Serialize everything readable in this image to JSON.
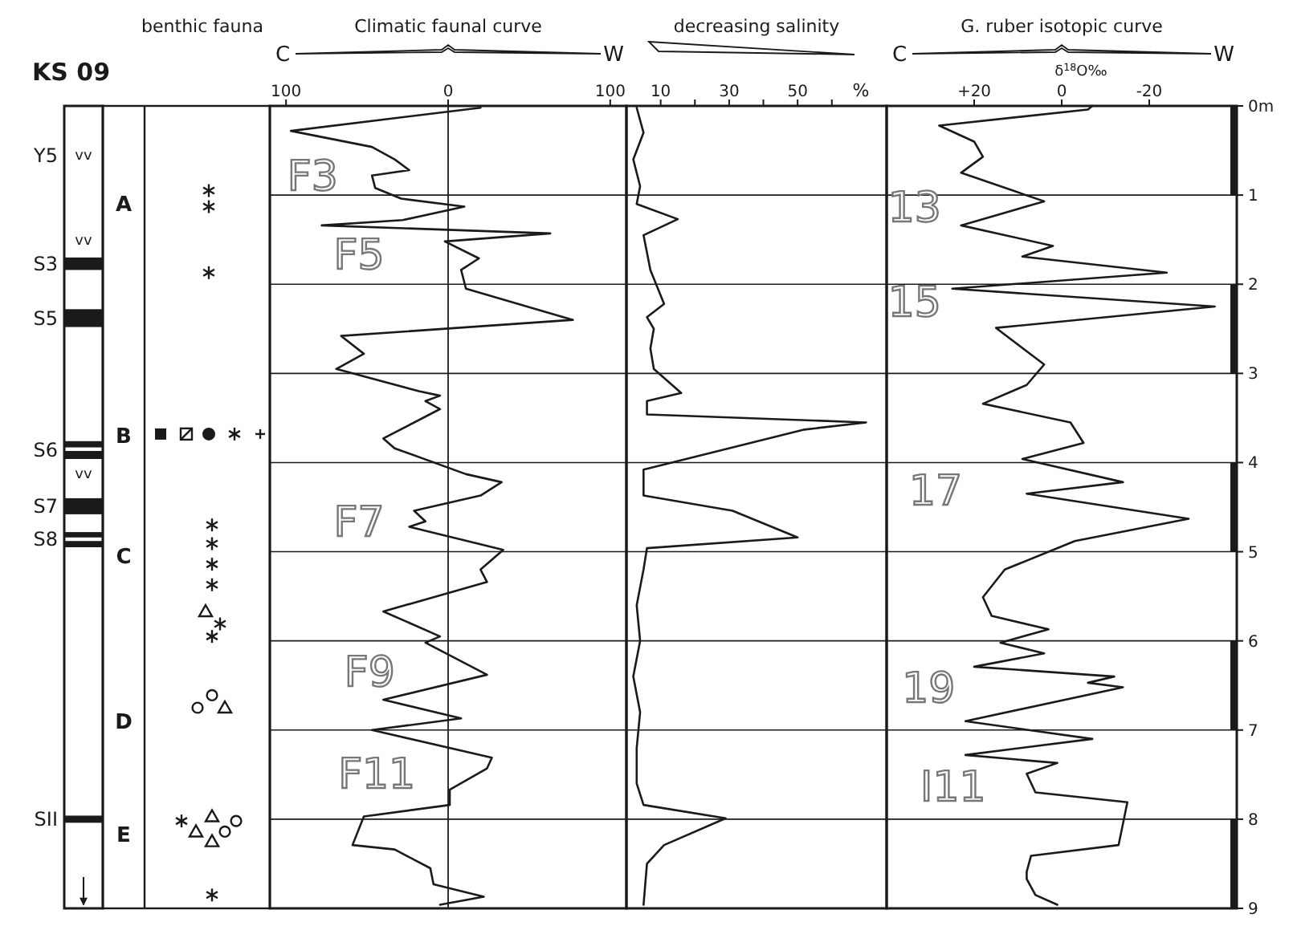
{
  "chart_data": [
    {
      "type": "other",
      "title": "KS 09",
      "annotations": [
        "Y5",
        "S3",
        "S5",
        "S6",
        "S7",
        "S8",
        "SII",
        "vv",
        "vv",
        "vv"
      ]
    },
    {
      "type": "other",
      "title": "benthic fauna",
      "annotations": [
        "A",
        "B",
        "C",
        "D",
        "E"
      ]
    },
    {
      "type": "line",
      "title": "Climatic faunal curve",
      "orientation": "horizontal",
      "xlim": [
        -110,
        110
      ],
      "xticks": [
        {
          "value": -100,
          "label": "100"
        },
        0,
        100
      ],
      "ylim": [
        9,
        0
      ],
      "yticks": [
        0,
        1,
        2,
        3,
        4,
        5,
        6,
        7,
        8,
        9
      ],
      "grid": "y",
      "tick_labels": "x",
      "ref_lines": [
        {
          "axis": "x",
          "value": 0
        }
      ],
      "annotations": [
        "C",
        "W",
        "F3",
        "F5",
        "F7",
        "F9",
        "F11"
      ],
      "series": [
        {
          "color": "#1a1a1a",
          "x": [
            0.02,
            0.28,
            0.46,
            0.6,
            0.72,
            0.78,
            0.92,
            1.04,
            1.13,
            1.28,
            1.34,
            1.43,
            1.52,
            1.71,
            1.84,
            2.05,
            2.4,
            2.58,
            2.78,
            2.95,
            3.2,
            3.25,
            3.31,
            3.4,
            3.73,
            3.84,
            4.13,
            4.22,
            4.37,
            4.54,
            4.66,
            4.72,
            4.98,
            5.2,
            5.34,
            5.67,
            5.95,
            6.02,
            6.38,
            6.66,
            6.87,
            7.0,
            7.31,
            7.43,
            7.67,
            7.84,
            7.97,
            8.29,
            8.34,
            8.55,
            8.73,
            8.87,
            8.96
          ],
          "values": [
            20,
            -97,
            -47,
            -33,
            -24,
            -47,
            -45,
            -29,
            10,
            -28,
            -78,
            63,
            -2,
            19,
            8,
            11,
            77,
            -66,
            -52,
            -69,
            -18,
            -5,
            -14,
            -5,
            -40,
            -33,
            11,
            33,
            20,
            -21,
            -14,
            -24,
            34,
            20,
            24,
            -40,
            -5,
            -14,
            24,
            -40,
            8,
            -47,
            27,
            24,
            1,
            1,
            -52,
            -59,
            -33,
            -11,
            -9,
            22,
            -5
          ]
        }
      ]
    },
    {
      "type": "line",
      "title": "decreasing salinity",
      "xlabel": "%",
      "orientation": "horizontal",
      "xlim": [
        0,
        76
      ],
      "xticks": [
        10,
        {
          "value": 20,
          "label": null
        },
        30,
        {
          "value": 40,
          "label": null
        },
        50,
        {
          "value": 60,
          "label": null
        }
      ],
      "ylim": [
        9,
        0
      ],
      "yticks": [
        0,
        1,
        2,
        3,
        4,
        5,
        6,
        7,
        8,
        9
      ],
      "grid": "y",
      "tick_labels": "x",
      "series": [
        {
          "color": "#1a1a1a",
          "x": [
            0.02,
            0.3,
            0.6,
            0.9,
            1.1,
            1.27,
            1.45,
            1.84,
            2.22,
            2.37,
            2.5,
            2.72,
            2.95,
            3.22,
            3.31,
            3.46,
            3.55,
            3.63,
            4.08,
            4.37,
            4.54,
            4.84,
            4.96,
            5.2,
            5.6,
            6.0,
            6.4,
            6.8,
            7.2,
            7.6,
            7.84,
            7.99,
            8.29,
            8.5,
            8.96
          ],
          "values": [
            3,
            5,
            2,
            4,
            3,
            15,
            5,
            7,
            11,
            6,
            8,
            7,
            8,
            16,
            6,
            6,
            70,
            52,
            5,
            5,
            31,
            50,
            6,
            5,
            3,
            4,
            2,
            4,
            3,
            3,
            5,
            29,
            11,
            6,
            5
          ]
        }
      ]
    },
    {
      "type": "line",
      "title": "G. ruber isotopic curve",
      "xlabel": "δ$^{18}$O‰",
      "orientation": "horizontal",
      "xlim": [
        40,
        -40
      ],
      "xticks": [
        {
          "value": 20,
          "label": "+20"
        },
        0,
        -20
      ],
      "ylim": [
        9,
        0
      ],
      "yticks": [
        {
          "value": 0,
          "label": "0m"
        },
        1,
        2,
        3,
        4,
        5,
        6,
        7,
        8,
        9
      ],
      "grid": "y",
      "annotations": [
        "C",
        "W",
        "13",
        "15",
        "17",
        "19",
        "I11"
      ],
      "series": [
        {
          "color": "#1a1a1a",
          "x": [
            0,
            0.04,
            0.22,
            0.4,
            0.57,
            0.75,
            1.07,
            1.34,
            1.57,
            1.69,
            1.87,
            2.05,
            2.25,
            2.49,
            2.9,
            3.13,
            3.34,
            3.55,
            3.78,
            3.96,
            4.22,
            4.35,
            4.63,
            4.88,
            5.2,
            5.51,
            5.72,
            5.87,
            6.02,
            6.14,
            6.29,
            6.4,
            6.47,
            6.52,
            6.9,
            7.1,
            7.28,
            7.37,
            7.49,
            7.7,
            7.81,
            8.29,
            8.41,
            8.59,
            8.67,
            8.85,
            8.96
          ],
          "values": [
            -7,
            -6,
            28,
            20,
            18,
            23,
            4,
            23,
            2,
            9,
            -24,
            25,
            -35,
            15,
            4,
            8,
            18,
            -2,
            -5,
            9,
            -14,
            8,
            -29,
            -3,
            13,
            18,
            16,
            3,
            14,
            4,
            20,
            -12,
            -6,
            -14,
            22,
            -7,
            22,
            1,
            8,
            6,
            -15,
            -13,
            7,
            8,
            8,
            6,
            1
          ]
        }
      ]
    }
  ]
}
